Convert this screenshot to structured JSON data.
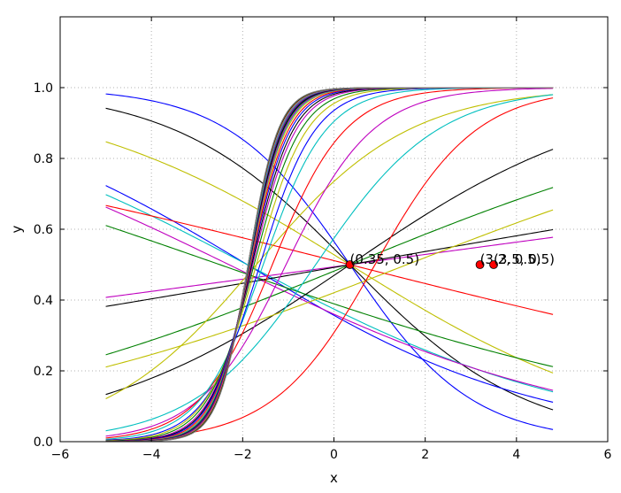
{
  "chart_data": {
    "type": "line",
    "xlabel": "x",
    "ylabel": "y",
    "xlim": [
      -6,
      6
    ],
    "ylim": [
      0,
      1.2
    ],
    "grid": true,
    "x_ticks": [
      -6,
      -4,
      -2,
      0,
      2,
      4,
      6
    ],
    "y_ticks": [
      0.0,
      0.2,
      0.4,
      0.6,
      0.8,
      1.0
    ],
    "x_tick_labels": [
      "−6",
      "−4",
      "−2",
      "0",
      "2",
      "4",
      "6"
    ],
    "y_tick_labels": [
      "0.0",
      "0.2",
      "0.4",
      "0.6",
      "0.8",
      "1.0"
    ],
    "x_range": [
      -5,
      4.8
    ],
    "series": [
      {
        "color": "#0000ff",
        "k": -0.75,
        "x0": 0.35
      },
      {
        "color": "#000000",
        "k": -0.52,
        "x0": 0.35
      },
      {
        "color": "#bfbf00",
        "k": -0.32,
        "x0": 0.35
      },
      {
        "color": "#0000ff",
        "k": -0.31,
        "x0": -1.9
      },
      {
        "color": "#00bfbf",
        "k": -0.27,
        "x0": -1.9
      },
      {
        "color": "#ff0000",
        "k": -0.13,
        "x0": 0.35
      },
      {
        "color": "#bf00bf",
        "k": -0.25,
        "x0": -2.3
      },
      {
        "color": "#008000",
        "k": -0.18,
        "x0": -2.5
      },
      {
        "color": "#bf00bf",
        "k": 0.07,
        "x0": 0.35
      },
      {
        "color": "#000000",
        "k": 0.09,
        "x0": 0.35
      },
      {
        "color": "#008000",
        "k": 0.21,
        "x0": 0.35
      },
      {
        "color": "#000000",
        "k": 0.35,
        "x0": 0.35
      },
      {
        "color": "#bfbf00",
        "k": 0.2,
        "x0": 1.6
      },
      {
        "color": "#bfbf00",
        "k": 0.6,
        "x0": -1.7
      },
      {
        "color": "#ff0000",
        "k": 0.9,
        "x0": 0.9
      },
      {
        "color": "#00bfbf",
        "k": 0.75,
        "x0": -0.4
      },
      {
        "color": "#bf00bf",
        "k": 1.05,
        "x0": -1.05
      },
      {
        "color": "#ff0000",
        "k": 1.25,
        "x0": -1.35
      },
      {
        "color": "#00bfbf",
        "k": 1.45,
        "x0": -1.55
      },
      {
        "color": "#0000ff",
        "k": 1.65,
        "x0": -1.62
      },
      {
        "color": "#bfbf00",
        "k": 1.8,
        "x0": -1.7
      },
      {
        "color": "#008000",
        "k": 1.95,
        "x0": -1.75
      },
      {
        "color": "#bf00bf",
        "k": 2.1,
        "x0": -1.78
      },
      {
        "color": "#000000",
        "k": 2.2,
        "x0": -1.8
      },
      {
        "color": "#0000ff",
        "k": 2.3,
        "x0": -1.82
      },
      {
        "color": "#ff0000",
        "k": 2.4,
        "x0": -1.83
      },
      {
        "color": "#bfbf00",
        "k": 2.5,
        "x0": -1.84
      },
      {
        "color": "#00bfbf",
        "k": 2.55,
        "x0": -1.85
      },
      {
        "color": "#bf00bf",
        "k": 2.6,
        "x0": -1.85
      },
      {
        "color": "#008000",
        "k": 2.65,
        "x0": -1.86
      },
      {
        "color": "#000000",
        "k": 2.7,
        "x0": -1.86
      },
      {
        "color": "#0000ff",
        "k": 2.75,
        "x0": -1.87
      },
      {
        "color": "#ff0000",
        "k": 2.8,
        "x0": -1.87
      },
      {
        "color": "#00bfbf",
        "k": 2.85,
        "x0": -1.87
      },
      {
        "color": "#bf00bf",
        "k": 2.9,
        "x0": -1.88
      },
      {
        "color": "#bfbf00",
        "k": 2.95,
        "x0": -1.88
      },
      {
        "color": "#000000",
        "k": 3.0,
        "x0": -1.88
      },
      {
        "color": "#808080",
        "k": 3.05,
        "x0": -1.88
      }
    ],
    "points": [
      {
        "x": 0.35,
        "y": 0.5,
        "label": "(0.35, 0.5)"
      },
      {
        "x": 3.2,
        "y": 0.5,
        "label": "(3.2, 0.5)"
      },
      {
        "x": 3.5,
        "y": 0.5,
        "label": "(3.5, 0.5)"
      }
    ],
    "point_color": "#ff0000"
  }
}
